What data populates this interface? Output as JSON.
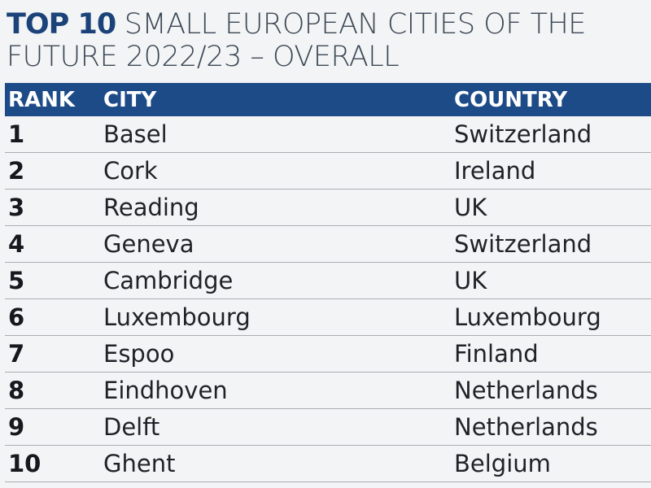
{
  "title": {
    "highlight": "TOP 10",
    "rest": " SMALL EUROPEAN CITIES OF THE FUTURE 2022/23 – OVERALL"
  },
  "colors": {
    "header_bg": "#1d4b88",
    "title_highlight": "#1b4379"
  },
  "chart_data": {
    "type": "table",
    "columns": [
      "RANK",
      "CITY",
      "COUNTRY"
    ],
    "rows": [
      [
        "1",
        "Basel",
        "Switzerland"
      ],
      [
        "2",
        "Cork",
        "Ireland"
      ],
      [
        "3",
        "Reading",
        "UK"
      ],
      [
        "4",
        "Geneva",
        "Switzerland"
      ],
      [
        "5",
        "Cambridge",
        "UK"
      ],
      [
        "6",
        "Luxembourg",
        "Luxembourg"
      ],
      [
        "7",
        "Espoo",
        "Finland"
      ],
      [
        "8",
        "Eindhoven",
        "Netherlands"
      ],
      [
        "9",
        "Delft",
        "Netherlands"
      ],
      [
        "10",
        "Ghent",
        "Belgium"
      ]
    ]
  }
}
